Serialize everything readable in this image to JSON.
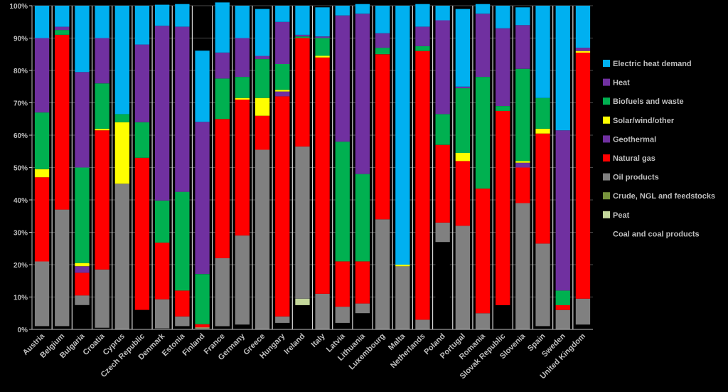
{
  "chart_data": {
    "type": "bar",
    "stacked": true,
    "percent": true,
    "ylim": [
      0,
      100
    ],
    "yticks": [
      "0%",
      "10%",
      "20%",
      "30%",
      "40%",
      "50%",
      "60%",
      "70%",
      "80%",
      "90%",
      "100%"
    ],
    "categories": [
      "Austria",
      "Belgium",
      "Bulgaria",
      "Croatia",
      "Cyprus",
      "Czech Republic",
      "Denmark",
      "Estonia",
      "Finland",
      "France",
      "Germany",
      "Greece",
      "Hungary",
      "Ireland",
      "Italy",
      "Latvia",
      "Lithuania",
      "Luxembourg",
      "Malta",
      "Netherlands",
      "Poland",
      "Portugal",
      "Romania",
      "Slovak Republic",
      "Slovenia",
      "Spain",
      "Sweden",
      "United Kingdom"
    ],
    "legend_position": "right",
    "series": [
      {
        "name": "Coal and coal products",
        "color": "#000000",
        "values": [
          1,
          1,
          7.5,
          0.5,
          0,
          6,
          0.3,
          1,
          0.3,
          1,
          1.5,
          0,
          2,
          7.5,
          0,
          2,
          5,
          0,
          0,
          0,
          27,
          0,
          0,
          7.5,
          0,
          1,
          0,
          1.5
        ]
      },
      {
        "name": "Peat",
        "color": "#c4d79b",
        "values": [
          0,
          0,
          0,
          0,
          0,
          0,
          0,
          0,
          0.3,
          0,
          0,
          0,
          0,
          2,
          0,
          0,
          0,
          0,
          0,
          0,
          0,
          0,
          0,
          0,
          0,
          0,
          0,
          0
        ]
      },
      {
        "name": "Crude, NGL and feedstocks",
        "color": "#77933c",
        "values": [
          0,
          0,
          0,
          0,
          0,
          0,
          0,
          0,
          0,
          0,
          0,
          0,
          0,
          0,
          0,
          0,
          0,
          0,
          0,
          0,
          0,
          0,
          0,
          0,
          0,
          0,
          0,
          0
        ]
      },
      {
        "name": "Oil products",
        "color": "#808080",
        "values": [
          20,
          36,
          3,
          18,
          45,
          0,
          9,
          3,
          0,
          21,
          27.5,
          55.5,
          2,
          47,
          11,
          5,
          3,
          34,
          19.5,
          3,
          6,
          32,
          5,
          0,
          39,
          25.5,
          6,
          8
        ]
      },
      {
        "name": "Natural gas",
        "color": "#ff0000",
        "values": [
          26,
          54,
          7,
          43,
          0,
          47,
          17.5,
          8,
          1,
          43,
          42,
          10.5,
          68,
          33.5,
          73,
          14,
          13,
          51,
          0,
          83,
          24,
          20,
          38.5,
          60,
          11,
          34,
          1.5,
          76
        ]
      },
      {
        "name": "Geothermal",
        "color": "#7030a0",
        "values": [
          0,
          0,
          2,
          0,
          0,
          0,
          0,
          0,
          0,
          0,
          0,
          0,
          1.5,
          0,
          0,
          0,
          0,
          0,
          0,
          0,
          0,
          0,
          0,
          0,
          1.5,
          0,
          0,
          0
        ]
      },
      {
        "name": "Solar/wind/other",
        "color": "#ffff00",
        "values": [
          2.5,
          0,
          1,
          0.5,
          19,
          0,
          0,
          0,
          0,
          0,
          0.5,
          5.5,
          0.5,
          0,
          0.5,
          0,
          0,
          0,
          0.5,
          0,
          0,
          2.5,
          0,
          0,
          0.5,
          1.5,
          0,
          0.5
        ]
      },
      {
        "name": "Biofuels and waste",
        "color": "#00b050",
        "values": [
          17.5,
          1.5,
          29.5,
          14,
          2.5,
          11,
          13,
          30.5,
          15.5,
          12.5,
          6.5,
          12,
          8,
          0.5,
          5.5,
          37,
          27,
          2,
          0,
          1.5,
          9.5,
          20,
          34.5,
          1.5,
          28.5,
          9.5,
          4.5,
          0
        ]
      },
      {
        "name": "Heat",
        "color": "#7030a0",
        "values": [
          23,
          1,
          29.5,
          14,
          0,
          24,
          54,
          51,
          47,
          8,
          12,
          1,
          13,
          0.5,
          0.5,
          39,
          49.5,
          4.5,
          0,
          6,
          29,
          0.5,
          19.5,
          24,
          13.5,
          0,
          49.5,
          1
        ]
      },
      {
        "name": "Electric heat demand",
        "color": "#00b0f0",
        "values": [
          10,
          6.5,
          20.5,
          10,
          33.5,
          12,
          6.5,
          7,
          22,
          15.5,
          10,
          14.5,
          5,
          9,
          9,
          3,
          3,
          8.5,
          80,
          7,
          4.5,
          24,
          3,
          7,
          5.5,
          28.5,
          38.5,
          13
        ]
      }
    ]
  }
}
